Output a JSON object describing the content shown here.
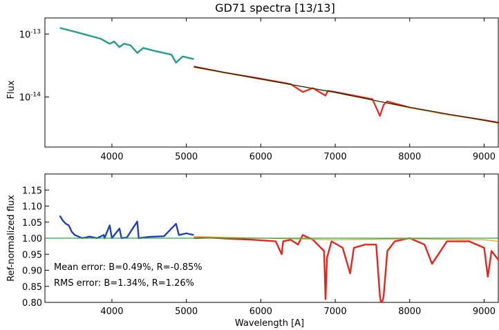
{
  "chart_data": [
    {
      "type": "line",
      "title": "GD71 spectra [13/13]",
      "ylabel": "Flux",
      "xlabel": "",
      "yscale": "log",
      "xlim": [
        3100,
        9200
      ],
      "ylim": [
        1.6e-15,
        1.8e-13
      ],
      "x_ticks": [
        4000,
        5000,
        6000,
        7000,
        8000,
        9000
      ],
      "y_ticks": [
        {
          "value": 1e-13,
          "base": "10",
          "exp": "-13"
        },
        {
          "value": 1e-14,
          "base": "10",
          "exp": "-14"
        }
      ],
      "grid": false,
      "series": [
        {
          "color": "#2a9d8f",
          "x": [
            3300,
            3500,
            3700,
            3850,
            3970,
            4030,
            4100,
            4160,
            4250,
            4340,
            4420,
            4600,
            4800,
            4861,
            4950,
            5100
          ],
          "y": [
            1.25e-13,
            1.09e-13,
            9.4e-14,
            8.4e-14,
            7e-14,
            7.6e-14,
            6.2e-14,
            7e-14,
            6.6e-14,
            5e-14,
            6e-14,
            5.3e-14,
            4.7e-14,
            3.5e-14,
            4.4e-14,
            4e-14
          ]
        },
        {
          "color": "#e8231c",
          "x": [
            5100,
            5500,
            6000,
            6400,
            6563,
            6700,
            6870,
            6900,
            7000,
            7500,
            7600,
            7650,
            7700,
            8000,
            8500,
            9000,
            9200
          ],
          "y": [
            3.05e-14,
            2.45e-14,
            1.95e-14,
            1.6e-14,
            1.2e-14,
            1.38e-14,
            1.05e-14,
            1.25e-14,
            1.2e-14,
            9.2e-15,
            5e-15,
            7.5e-15,
            8.5e-15,
            6.8e-15,
            5.3e-15,
            4.3e-15,
            3.9e-15
          ]
        },
        {
          "color": "#e6c200",
          "x": [
            5100,
            6000,
            7000,
            8000,
            9000,
            9200
          ],
          "y": [
            2.95e-14,
            1.9e-14,
            1.17e-14,
            6.7e-15,
            4.2e-15,
            3.8e-15
          ]
        },
        {
          "color": "#1a1a1a",
          "x": [
            5100,
            6000,
            7000,
            8000,
            9000,
            9200
          ],
          "y": [
            3e-14,
            1.92e-14,
            1.18e-14,
            6.8e-15,
            4.25e-15,
            3.85e-15
          ]
        }
      ]
    },
    {
      "type": "line",
      "title": "",
      "xlabel": "Wavelength [A]",
      "ylabel": "Ref-normalized flux",
      "xlim": [
        3100,
        9200
      ],
      "ylim": [
        0.8,
        1.2
      ],
      "x_ticks": [
        4000,
        5000,
        6000,
        7000,
        8000,
        9000
      ],
      "y_ticks": [
        0.8,
        0.85,
        0.9,
        0.95,
        1.0,
        1.05,
        1.1,
        1.15
      ],
      "y_tick_labels": [
        "0.80",
        "0.85",
        "0.90",
        "0.95",
        "1.00",
        "1.05",
        "1.10",
        "1.15"
      ],
      "grid": false,
      "reference_line": {
        "y": 1.0,
        "color": "#2ea043"
      },
      "annotations": {
        "mean_error": "Mean error: B=0.49%, R=-0.85%",
        "rms_error": "RMS error: B=1.34%, R=1.26%"
      },
      "series": [
        {
          "color": "#1f3fbf",
          "x": [
            3300,
            3340,
            3380,
            3420,
            3460,
            3500,
            3550,
            3600,
            3700,
            3800,
            3889,
            3900,
            3970,
            4000,
            4101,
            4130,
            4200,
            4340,
            4360,
            4500,
            4700,
            4861,
            4900,
            5000,
            5100
          ],
          "y": [
            1.07,
            1.055,
            1.045,
            1.04,
            1.02,
            1.01,
            1.005,
            1.0,
            1.005,
            1.0,
            1.01,
            1.0,
            1.04,
            1.0,
            1.03,
            1.0,
            1.002,
            1.052,
            1.0,
            1.004,
            1.006,
            1.045,
            1.01,
            1.015,
            1.01
          ]
        },
        {
          "color": "#e8231c",
          "x": [
            5100,
            5300,
            5600,
            5900,
            6200,
            6280,
            6300,
            6400,
            6500,
            6563,
            6700,
            6850,
            6870,
            6890,
            6950,
            7100,
            7200,
            7250,
            7400,
            7550,
            7600,
            7620,
            7650,
            7700,
            7800,
            8000,
            8200,
            8300,
            8500,
            8800,
            9000,
            9050,
            9100,
            9200
          ],
          "y": [
            1.0,
            1.002,
            0.998,
            0.995,
            0.99,
            0.95,
            0.99,
            0.995,
            0.98,
            1.01,
            0.995,
            0.96,
            0.81,
            0.94,
            0.99,
            0.97,
            0.89,
            0.97,
            0.98,
            0.98,
            0.82,
            0.79,
            0.82,
            0.96,
            0.99,
            1.0,
            0.98,
            0.92,
            0.99,
            0.99,
            0.97,
            0.88,
            0.96,
            0.93
          ]
        },
        {
          "color": "#e6a000",
          "x": [
            5100,
            6000,
            7000,
            8000,
            9000,
            9200
          ],
          "y": [
            1.005,
            1.0,
            0.995,
            0.998,
            0.995,
            0.99
          ]
        }
      ]
    }
  ]
}
